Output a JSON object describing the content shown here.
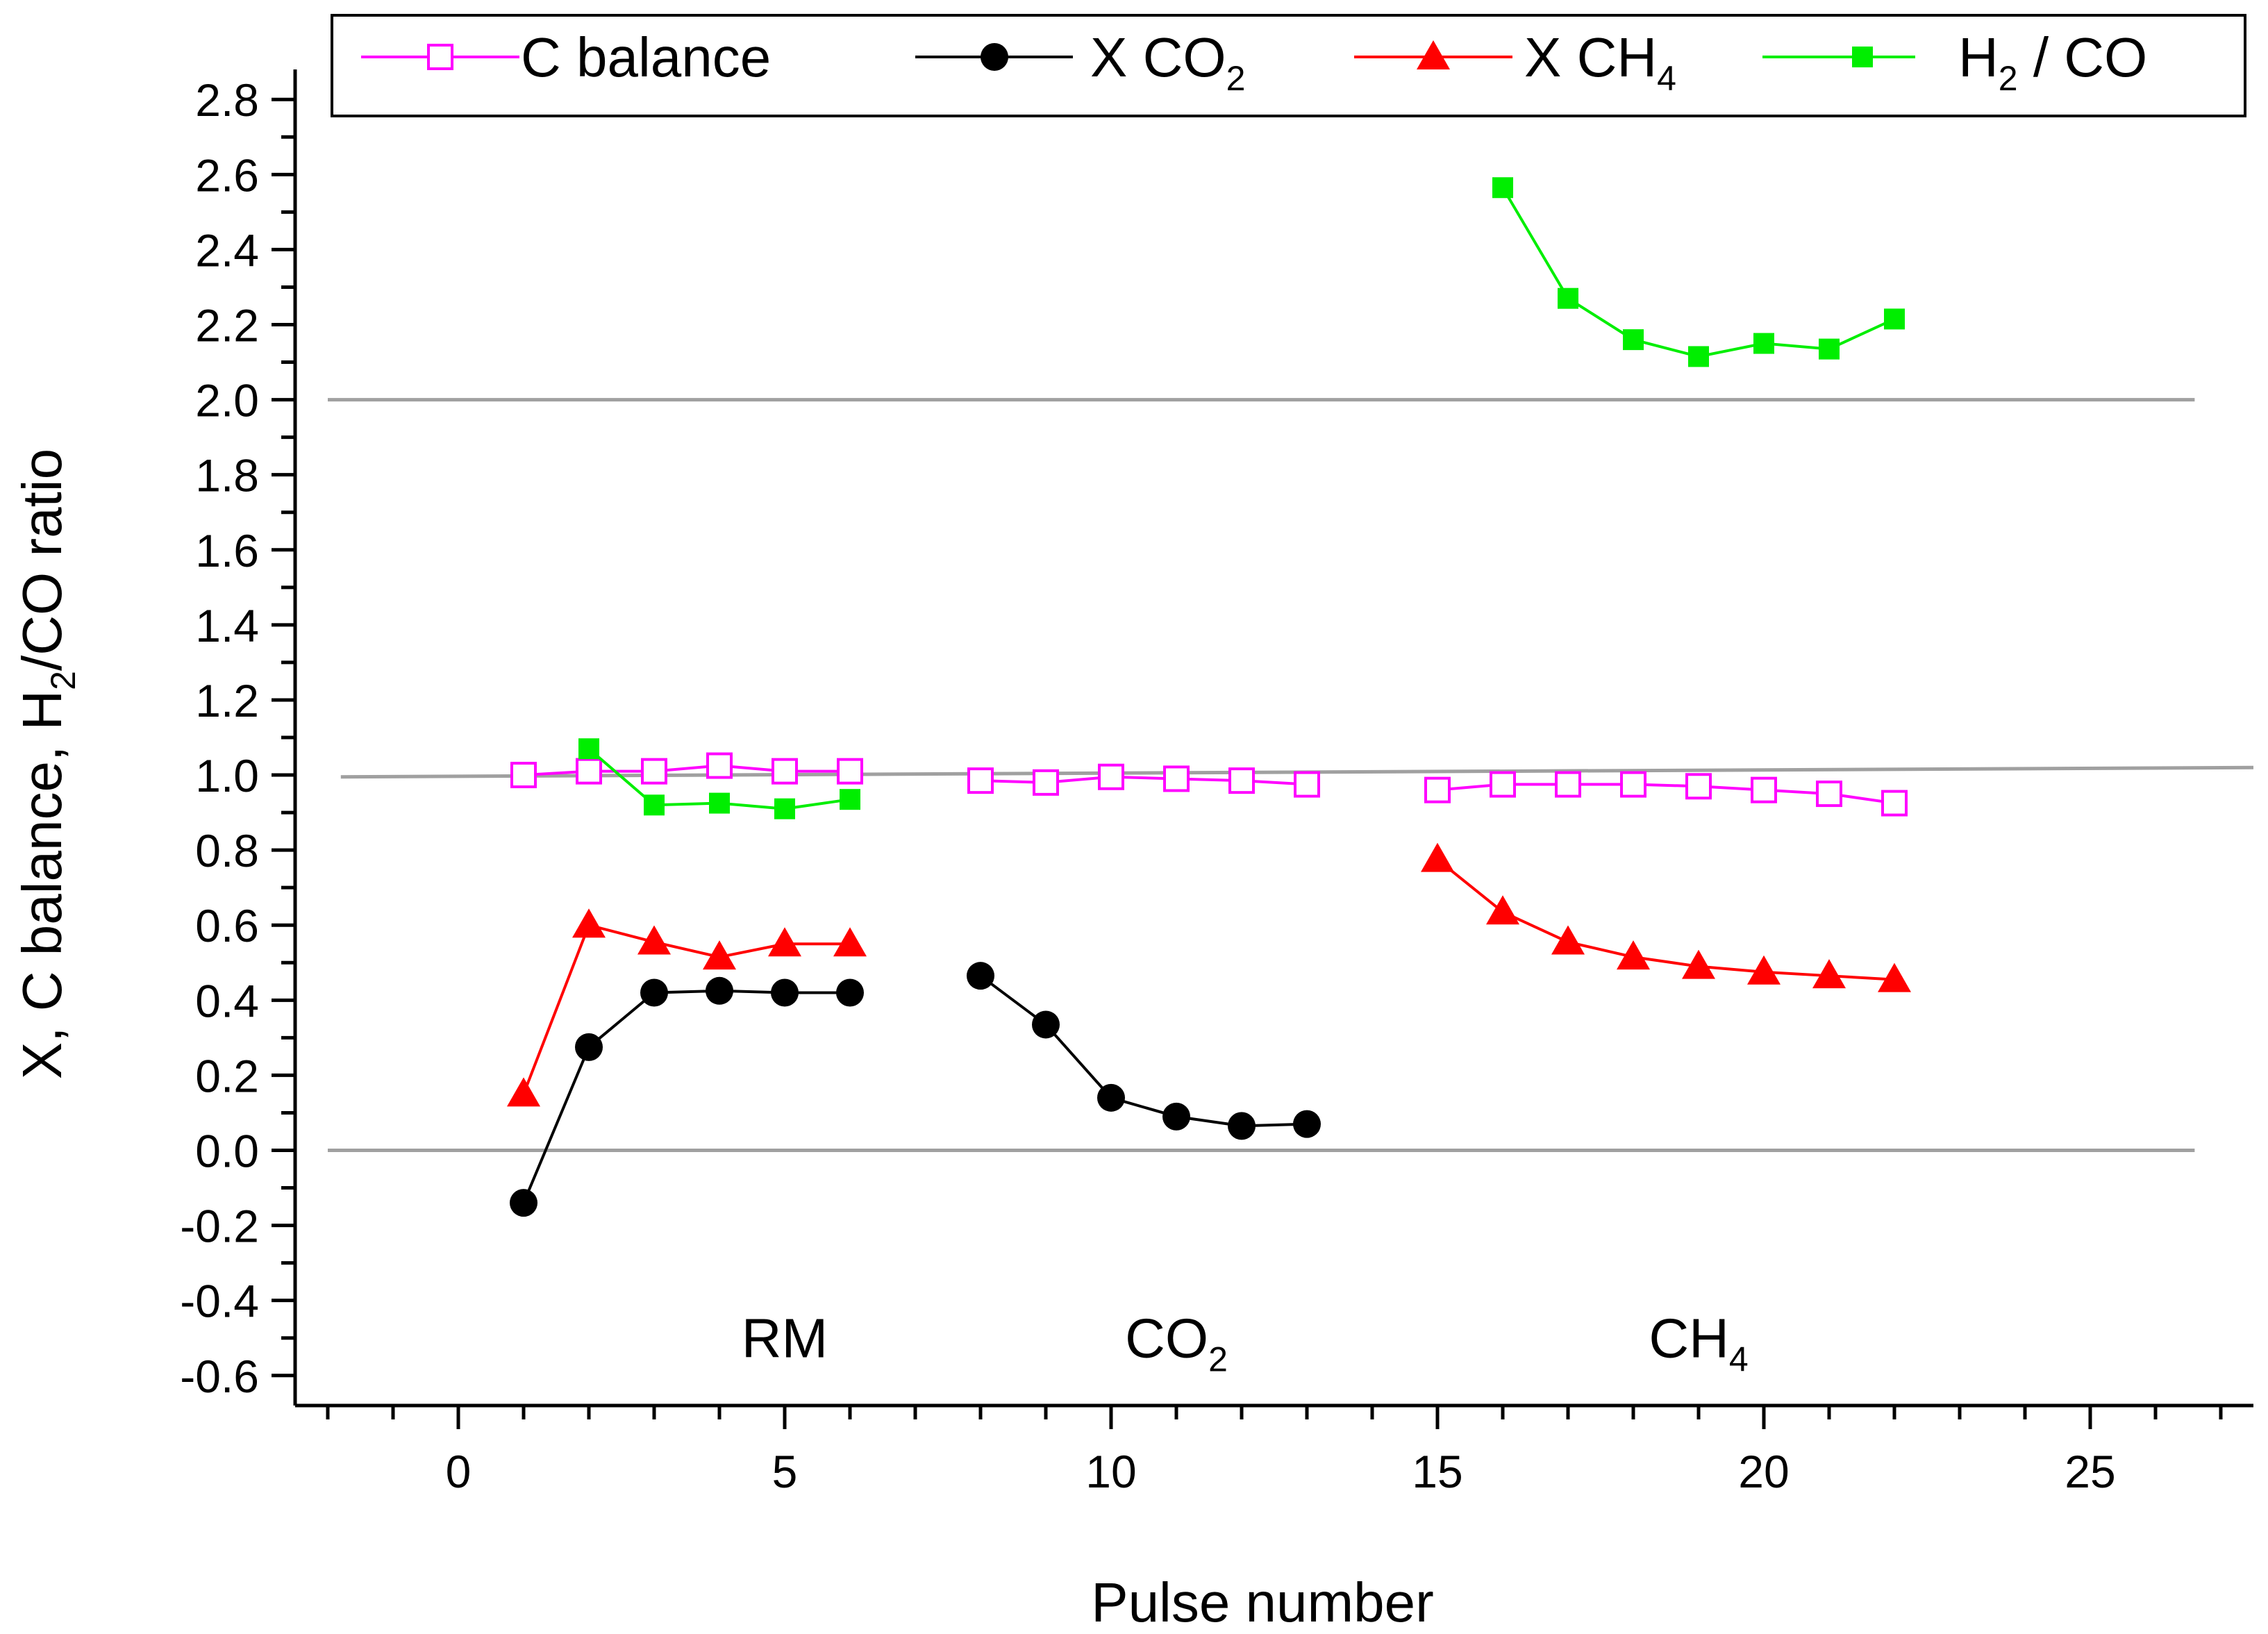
{
  "chart_data": {
    "type": "line",
    "xlabel": "Pulse number",
    "ylabel": {
      "prefix": "X,  C balance, H",
      "sub": "2",
      "suffix": "/CO ratio"
    },
    "xlim": [
      -2.5,
      27.5
    ],
    "ylim": [
      -0.68,
      2.88
    ],
    "xticks": [
      0,
      5,
      10,
      15,
      20,
      25
    ],
    "xtick_labels": [
      "0",
      "5",
      "10",
      "15",
      "20",
      "25"
    ],
    "yticks": [
      -0.6,
      -0.4,
      -0.2,
      0.0,
      0.2,
      0.4,
      0.6,
      0.8,
      1.0,
      1.2,
      1.4,
      1.6,
      1.8,
      2.0,
      2.2,
      2.4,
      2.6,
      2.8
    ],
    "ytick_labels": [
      "-0.6",
      "-0.4",
      "-0.2",
      "0.0",
      "0.2",
      "0.4",
      "0.6",
      "0.8",
      "1.0",
      "1.2",
      "1.4",
      "1.6",
      "1.8",
      "2.0",
      "2.2",
      "2.4",
      "2.6",
      "2.8"
    ],
    "reference_lines": [
      {
        "y1": 2.0,
        "y2": 2.0,
        "x1": -2.0,
        "x2": 26.6,
        "color": "#a0a0a0"
      },
      {
        "y1": 0.995,
        "y2": 1.02,
        "x1": -1.8,
        "x2": 27.5,
        "color": "#a0a0a0"
      },
      {
        "y1": 0.0,
        "y2": 0.0,
        "x1": -2.0,
        "x2": 26.6,
        "color": "#a0a0a0"
      }
    ],
    "region_labels": [
      {
        "text": "RM",
        "sub": "",
        "x": 5.0,
        "y": -0.5
      },
      {
        "text": "CO",
        "sub": "2",
        "x": 11.0,
        "y": -0.5
      },
      {
        "text": "CH",
        "sub": "4",
        "x": 19.0,
        "y": -0.5
      }
    ],
    "series": [
      {
        "name": "C balance",
        "name_main": "C balance",
        "name_sub": "",
        "name_after": "",
        "color": "#ff00ff",
        "marker": "open-square",
        "segments": [
          {
            "x": [
              1,
              2,
              3,
              4,
              5,
              6
            ],
            "y": [
              1.0,
              1.01,
              1.01,
              1.025,
              1.01,
              1.01
            ]
          },
          {
            "x": [
              8,
              9,
              10,
              11,
              12,
              13
            ],
            "y": [
              0.985,
              0.98,
              0.995,
              0.99,
              0.985,
              0.975
            ]
          },
          {
            "x": [
              15,
              16,
              17,
              18,
              19,
              20,
              21,
              22
            ],
            "y": [
              0.96,
              0.975,
              0.975,
              0.975,
              0.97,
              0.96,
              0.95,
              0.925
            ]
          }
        ]
      },
      {
        "name": "X CO2",
        "name_main": "X CO",
        "name_sub": "2",
        "name_after": "",
        "color": "#000000",
        "marker": "filled-circle",
        "segments": [
          {
            "x": [
              1,
              2,
              3,
              4,
              5,
              6
            ],
            "y": [
              -0.14,
              0.275,
              0.42,
              0.425,
              0.42,
              0.42
            ]
          },
          {
            "x": [
              8,
              9,
              10,
              11,
              12,
              13
            ],
            "y": [
              0.465,
              0.335,
              0.14,
              0.09,
              0.065,
              0.07
            ]
          }
        ]
      },
      {
        "name": "X CH4",
        "name_main": "X CH",
        "name_sub": "4",
        "name_after": "",
        "color": "#ff0000",
        "marker": "filled-triangle",
        "segments": [
          {
            "x": [
              1,
              2,
              3,
              4,
              5,
              6
            ],
            "y": [
              0.15,
              0.6,
              0.555,
              0.515,
              0.55,
              0.55
            ]
          },
          {
            "x": [
              15,
              16,
              17,
              18,
              19,
              20,
              21,
              22
            ],
            "y": [
              0.775,
              0.635,
              0.555,
              0.515,
              0.49,
              0.475,
              0.465,
              0.455
            ]
          }
        ]
      },
      {
        "name": "H2 / CO",
        "name_main": "H",
        "name_sub": "2",
        "name_after": " / CO",
        "color": "#00ee00",
        "marker": "filled-square-small",
        "segments": [
          {
            "x": [
              2,
              3,
              4,
              5,
              6
            ],
            "y": [
              1.07,
              0.92,
              0.925,
              0.91,
              0.935
            ]
          },
          {
            "x": [
              16,
              17,
              18,
              19,
              20,
              21,
              22
            ],
            "y": [
              2.565,
              2.27,
              2.16,
              2.115,
              2.15,
              2.135,
              2.215
            ]
          }
        ]
      }
    ]
  }
}
